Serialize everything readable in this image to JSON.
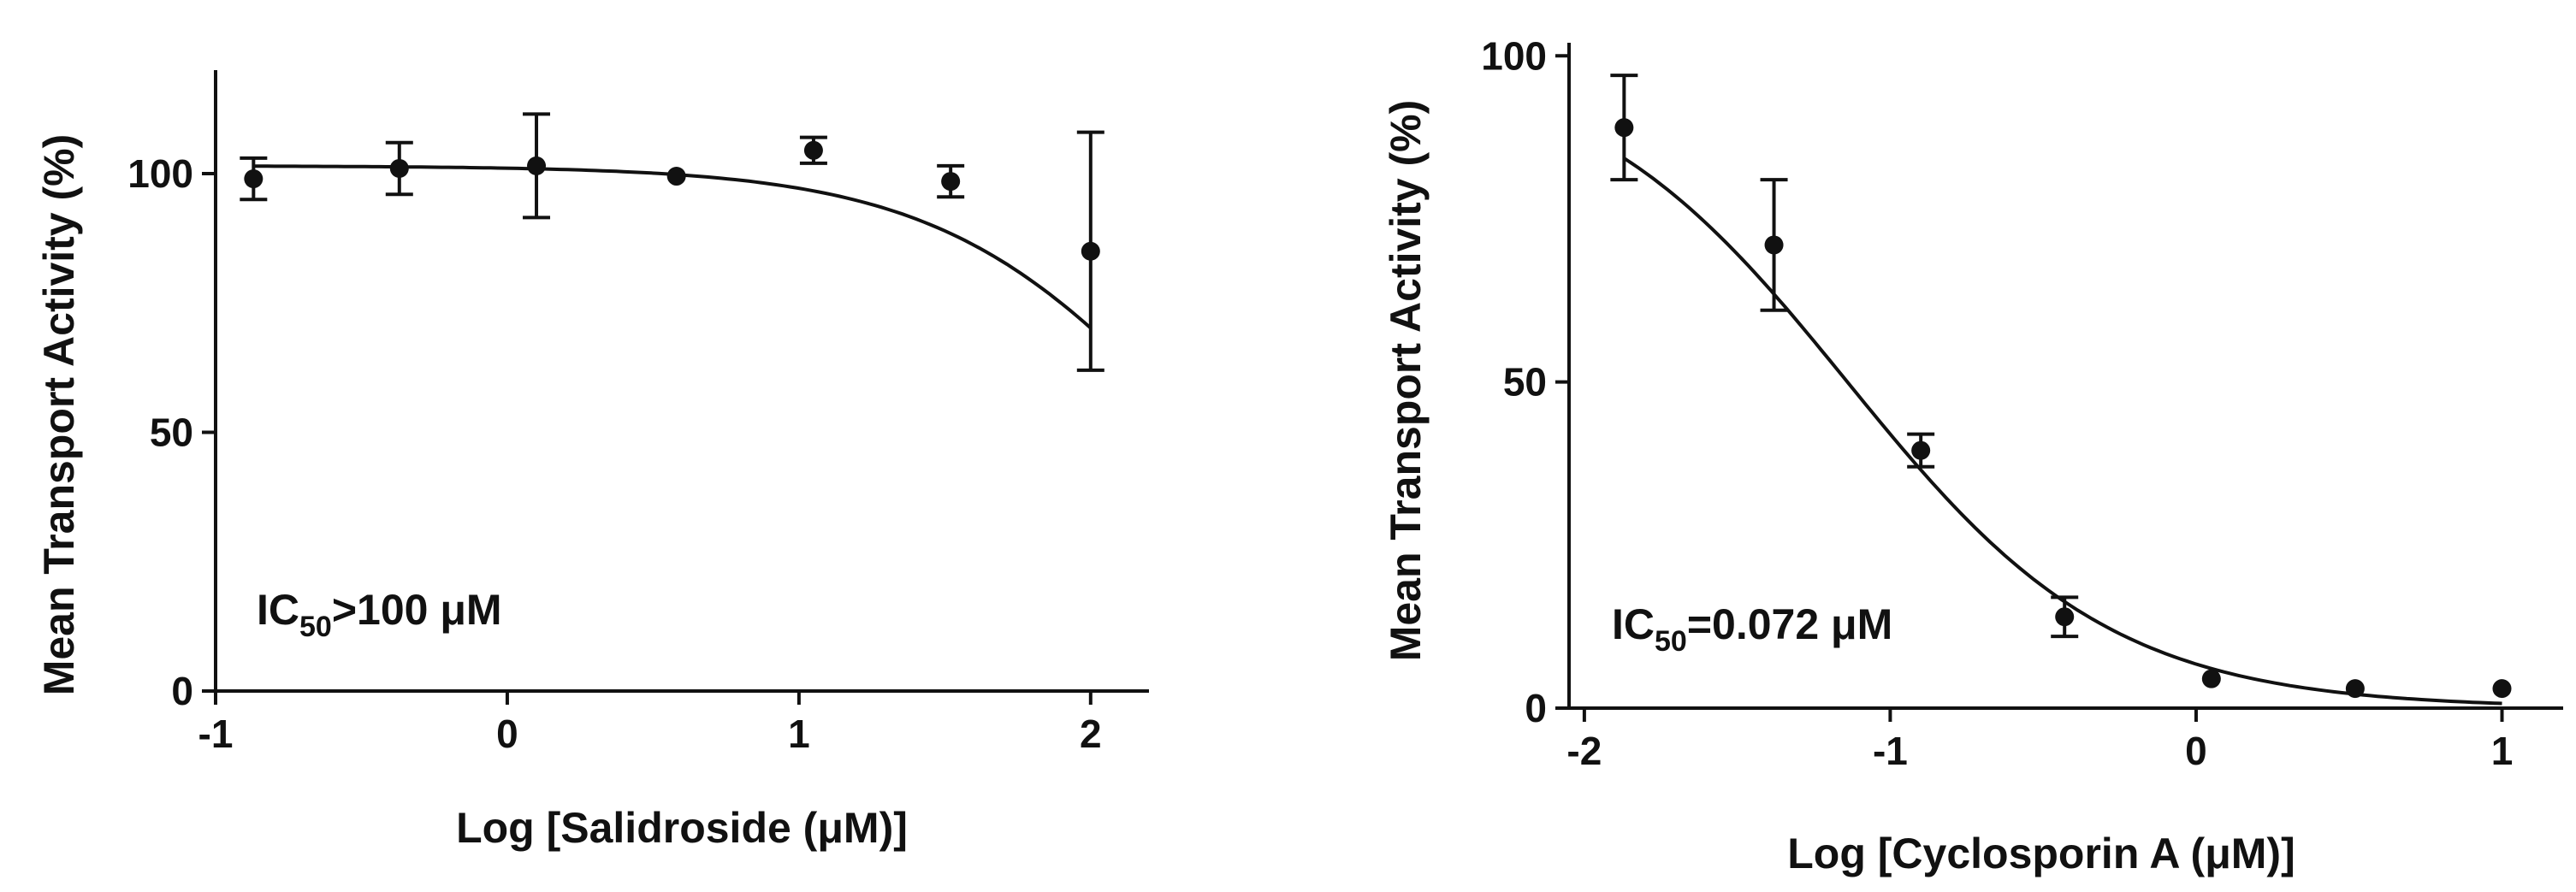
{
  "chart_data": [
    {
      "type": "scatter",
      "xlabel": "Log [Salidroside (μM)]",
      "ylabel": "Mean Transport Activity (%)",
      "xlim": [
        -1,
        2.2
      ],
      "ylim": [
        0,
        120
      ],
      "xticks": [
        -1,
        0,
        1,
        2
      ],
      "xtick_labels": [
        "-1",
        "0",
        "1",
        "2"
      ],
      "yticks": [
        0,
        50,
        100
      ],
      "ytick_labels": [
        "0",
        "50",
        "100"
      ],
      "grid": false,
      "annotation": {
        "prefix": "IC",
        "subscript": "50",
        "suffix": ">100 μM"
      },
      "points": [
        {
          "x": -0.87,
          "y": 99,
          "err": 4
        },
        {
          "x": -0.37,
          "y": 101,
          "err": 5
        },
        {
          "x": 0.1,
          "y": 101.5,
          "err": 10
        },
        {
          "x": 0.58,
          "y": 99.5,
          "err": 0
        },
        {
          "x": 1.05,
          "y": 104.5,
          "err": 2.5
        },
        {
          "x": 1.52,
          "y": 98.5,
          "err": 3
        },
        {
          "x": 2.0,
          "y": 85,
          "err": 23
        }
      ],
      "fit": {
        "top": 101.5,
        "bottom": 0,
        "log_ic50": 2.35,
        "hill": 1.0,
        "x_range": [
          -0.87,
          2.0
        ]
      }
    },
    {
      "type": "scatter",
      "xlabel": "Log [Cyclosporin A (μM)]",
      "ylabel": "Mean Transport Activity (%)",
      "xlim": [
        -2.05,
        1.2
      ],
      "ylim": [
        0,
        102
      ],
      "xticks": [
        -2,
        -1,
        0,
        1
      ],
      "xtick_labels": [
        "-2",
        "-1",
        "0",
        "1"
      ],
      "yticks": [
        0,
        50,
        100
      ],
      "ytick_labels": [
        "0",
        "50",
        "100"
      ],
      "grid": false,
      "annotation": {
        "prefix": "IC",
        "subscript": "50",
        "suffix": "=0.072 μM"
      },
      "points": [
        {
          "x": -1.87,
          "y": 89,
          "err": 8
        },
        {
          "x": -1.38,
          "y": 71,
          "err": 10
        },
        {
          "x": -0.9,
          "y": 39.5,
          "err": 2.5
        },
        {
          "x": -0.43,
          "y": 14,
          "err": 3
        },
        {
          "x": 0.05,
          "y": 4.5,
          "err": 0
        },
        {
          "x": 0.52,
          "y": 3,
          "err": 0
        },
        {
          "x": 1.0,
          "y": 3,
          "err": 0
        }
      ],
      "fit": {
        "top": 100,
        "bottom": 0,
        "log_ic50": -1.14,
        "hill": 1.0,
        "x_range": [
          -1.87,
          1.0
        ]
      }
    }
  ]
}
